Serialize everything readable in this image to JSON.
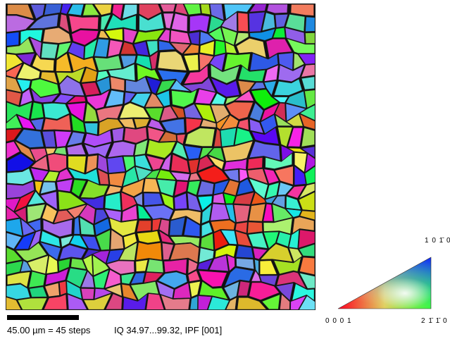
{
  "scale_bar": {
    "label": "45.00 µm = 45 steps"
  },
  "map_info": "IQ 34.97...99.32, IPF [001]",
  "legend": {
    "top": "1 0 1̄ 0",
    "left": "0 0 0 1",
    "right": "2 1̄ 1̄ 0"
  }
}
